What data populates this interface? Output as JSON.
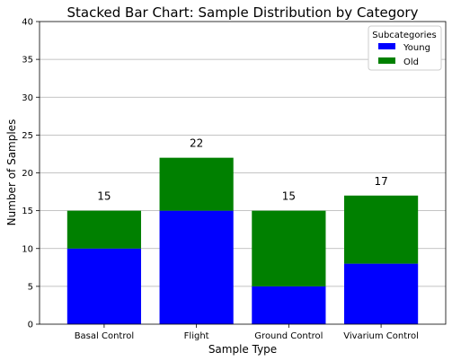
{
  "chart_data": {
    "type": "bar",
    "stacked": true,
    "title": "Stacked Bar Chart: Sample Distribution by Category",
    "xlabel": "Sample Type",
    "ylabel": "Number of Samples",
    "categories": [
      "Basal Control",
      "Flight",
      "Ground Control",
      "Vivarium Control"
    ],
    "series": [
      {
        "name": "Young",
        "color": "#0000ff",
        "values": [
          10,
          15,
          5,
          8
        ]
      },
      {
        "name": "Old",
        "color": "#008000",
        "values": [
          5,
          7,
          10,
          9
        ]
      }
    ],
    "totals": [
      "15",
      "22",
      "15",
      "17"
    ],
    "ylim": [
      0,
      40
    ],
    "yticks": [
      "0",
      "5",
      "10",
      "15",
      "20",
      "25",
      "30",
      "35",
      "40"
    ],
    "grid": "horizontal",
    "legend": {
      "title": "Subcategories",
      "position": "top-right"
    }
  }
}
